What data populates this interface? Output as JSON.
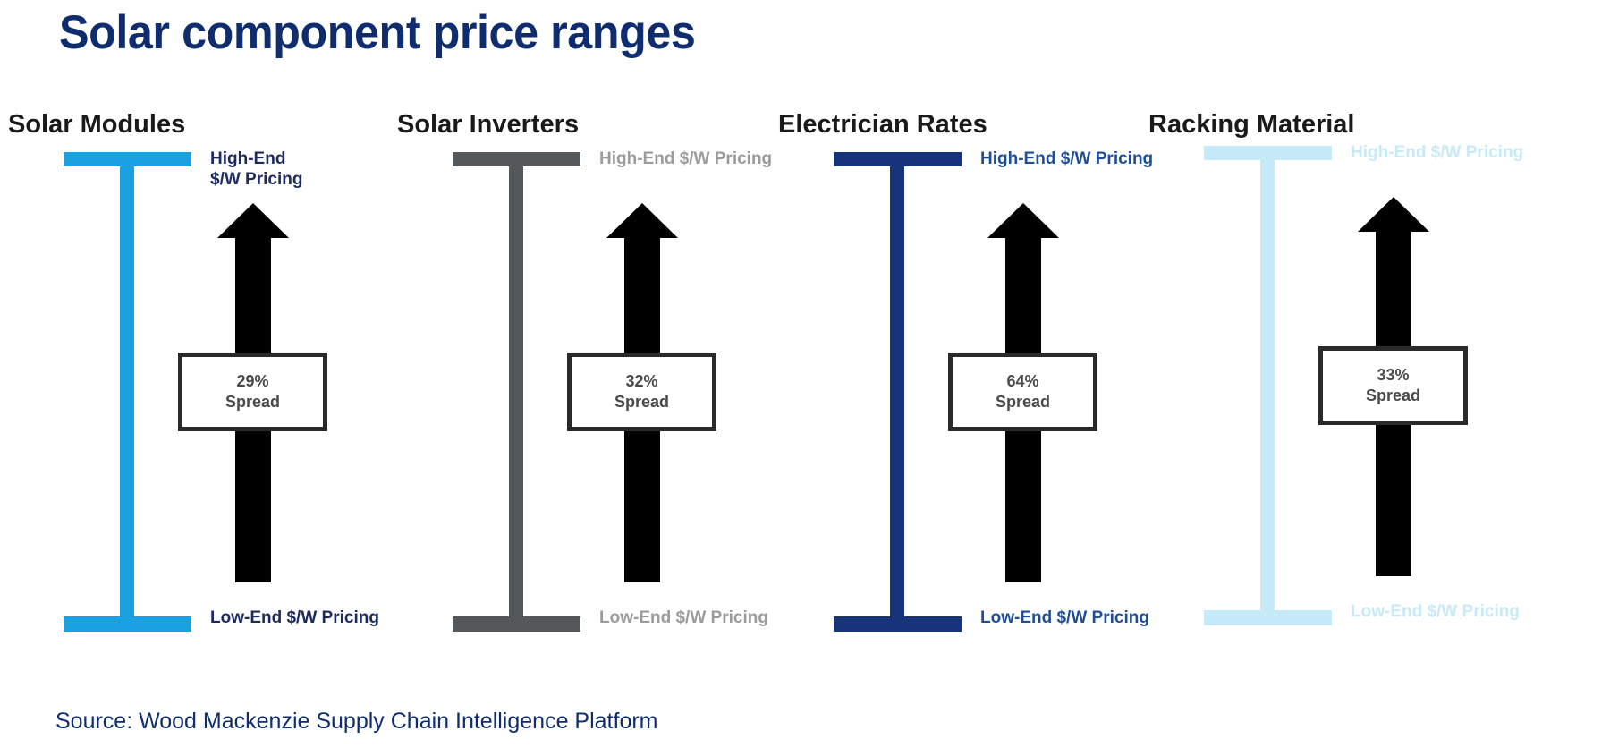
{
  "title": "Solar component price ranges",
  "source": "Source: Wood Mackenzie Supply Chain Intelligence Platform",
  "panels": [
    {
      "name": "Solar Modules",
      "high": "High-End $/W Pricing",
      "low": "Low-End $/W Pricing",
      "spread": "29%",
      "spread_label": "Spread",
      "color": "#1ba1e2",
      "text_color": "#1d2a5e"
    },
    {
      "name": "Solar Inverters",
      "high": "High-End $/W Pricing",
      "low": "Low-End $/W Pricing",
      "spread": "32%",
      "spread_label": "Spread",
      "color": "#54585a",
      "text_color": "#9b9b9b"
    },
    {
      "name": "Electrician Rates",
      "high": "High-End $/W Pricing",
      "low": "Low-End $/W Pricing",
      "spread": "64%",
      "spread_label": "Spread",
      "color": "#17347a",
      "text_color": "#1f4e96"
    },
    {
      "name": "Racking Material",
      "high": "High-End $/W Pricing",
      "low": "Low-End $/W Pricing",
      "spread": "33%",
      "spread_label": "Spread",
      "color": "#c7eaf9",
      "text_color": "#c7eaf9"
    }
  ]
}
